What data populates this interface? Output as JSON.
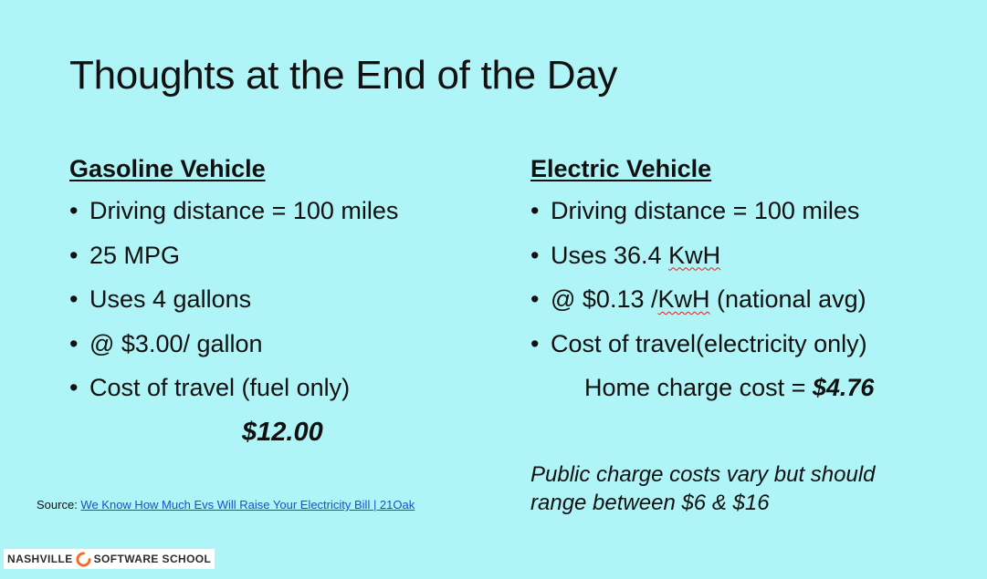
{
  "title": "Thoughts at the End of the Day",
  "gasoline": {
    "heading": "Gasoline Vehicle",
    "bullets": [
      "Driving distance = 100 miles",
      "25 MPG",
      "Uses 4 gallons",
      "@ $3.00/ gallon",
      "Cost of travel (fuel only)"
    ],
    "total": "$12.00"
  },
  "electric": {
    "heading": "Electric Vehicle",
    "bullet1": "Driving distance = 100 miles",
    "bullet2_prefix": "Uses 36.4 ",
    "bullet2_unit": "KwH",
    "bullet3_prefix": "@ $0.13 /",
    "bullet3_unit": "KwH",
    "bullet3_suffix": " (national avg)",
    "bullet4": "Cost of travel(electricity only)",
    "home_label": "Home charge cost = ",
    "home_amount": "$4.76",
    "public_note": "Public charge costs vary but should range between $6 & $16"
  },
  "source": {
    "label": "Source: ",
    "link_text": "We Know How Much Evs Will Raise Your Electricity Bill | 21Oak"
  },
  "logo": {
    "left_text": "NASHVILLE",
    "right_text": "SOFTWARE SCHOOL",
    "accent_color": "#f26b21"
  },
  "colors": {
    "background": "#aff4f6",
    "link": "#1a4fd0"
  }
}
